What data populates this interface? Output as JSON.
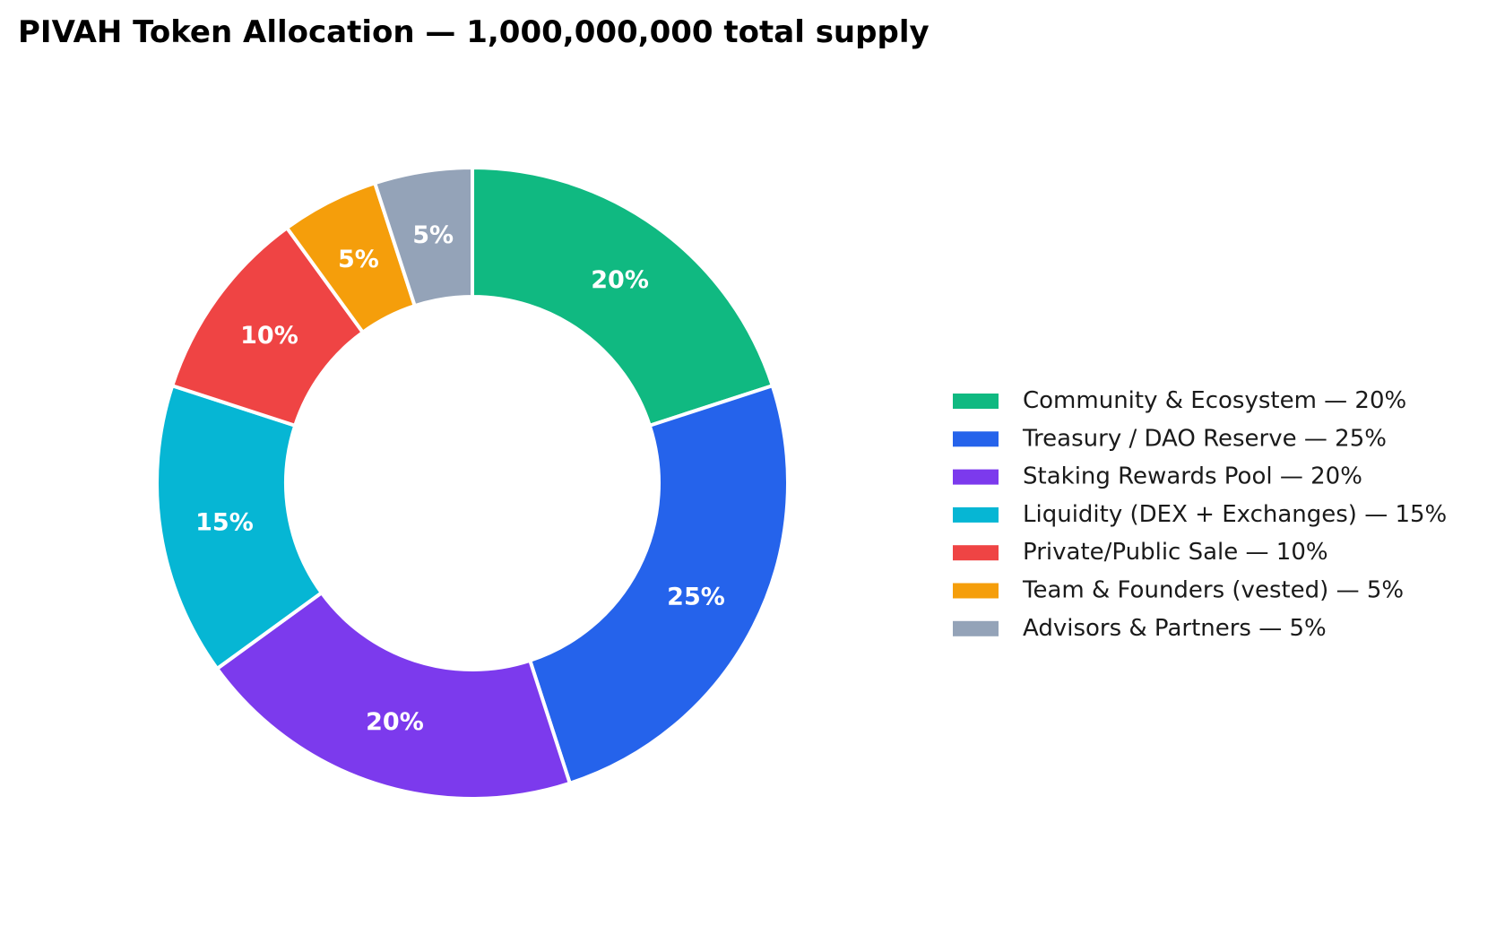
{
  "chart_data": {
    "type": "pie",
    "variant": "donut",
    "title": "PIVAH Token Allocation — 1,000,000,000 total supply",
    "start": "top, clockwise",
    "legend_position": "right",
    "slices": [
      {
        "name": "Community & Ecosystem",
        "value": 20,
        "label": "20%",
        "legend": "Community & Ecosystem — 20%",
        "color": "#10B981"
      },
      {
        "name": "Treasury / DAO Reserve",
        "value": 25,
        "label": "25%",
        "legend": "Treasury / DAO Reserve — 25%",
        "color": "#2563EB"
      },
      {
        "name": "Staking Rewards Pool",
        "value": 20,
        "label": "20%",
        "legend": "Staking Rewards Pool — 20%",
        "color": "#7C3AED"
      },
      {
        "name": "Liquidity (DEX + Exchanges)",
        "value": 15,
        "label": "15%",
        "legend": "Liquidity (DEX + Exchanges) — 15%",
        "color": "#06B6D4"
      },
      {
        "name": "Private/Public Sale",
        "value": 10,
        "label": "10%",
        "legend": "Private/Public Sale — 10%",
        "color": "#EF4444"
      },
      {
        "name": "Team & Founders (vested)",
        "value": 5,
        "label": "5%",
        "legend": "Team & Founders (vested) — 5%",
        "color": "#F59E0B"
      },
      {
        "name": "Advisors & Partners",
        "value": 5,
        "label": "5%",
        "legend": "Advisors & Partners — 5%",
        "color": "#94A3B8"
      }
    ]
  }
}
